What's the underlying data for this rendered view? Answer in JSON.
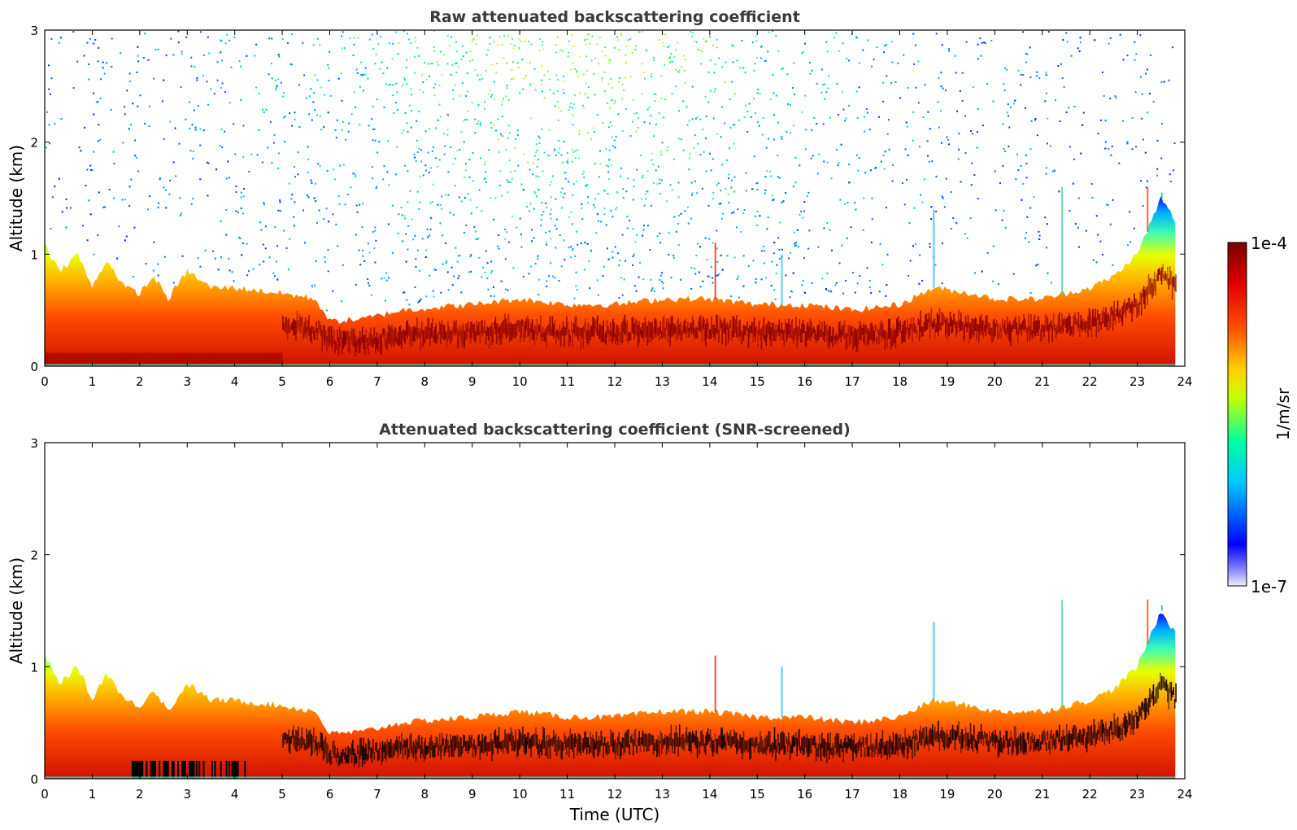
{
  "chart_data": [
    {
      "type": "heatmap",
      "title": "Raw attenuated backscattering coefficient",
      "xlabel": "",
      "ylabel": "Altitude (km)",
      "xlim": [
        0,
        24
      ],
      "ylim": [
        0,
        3
      ],
      "xticks": [
        "0",
        "1",
        "2",
        "3",
        "4",
        "5",
        "6",
        "7",
        "8",
        "9",
        "10",
        "11",
        "12",
        "13",
        "14",
        "15",
        "16",
        "17",
        "18",
        "19",
        "20",
        "21",
        "22",
        "23",
        "24"
      ],
      "yticks": [
        "0",
        "1",
        "2",
        "3"
      ],
      "screened": false,
      "boundary_layer_top_km": [
        [
          0,
          1.1
        ],
        [
          0.3,
          0.85
        ],
        [
          0.7,
          1.0
        ],
        [
          1.0,
          0.7
        ],
        [
          1.3,
          0.95
        ],
        [
          1.7,
          0.7
        ],
        [
          2.0,
          0.65
        ],
        [
          2.3,
          0.8
        ],
        [
          2.6,
          0.6
        ],
        [
          3.0,
          0.85
        ],
        [
          3.5,
          0.7
        ],
        [
          4.0,
          0.7
        ],
        [
          5.0,
          0.65
        ],
        [
          5.7,
          0.6
        ],
        [
          6.0,
          0.4
        ],
        [
          6.7,
          0.42
        ],
        [
          7.5,
          0.5
        ],
        [
          9.0,
          0.55
        ],
        [
          10.0,
          0.6
        ],
        [
          11.0,
          0.55
        ],
        [
          12.0,
          0.55
        ],
        [
          13.0,
          0.6
        ],
        [
          14.0,
          0.6
        ],
        [
          15.0,
          0.55
        ],
        [
          16.0,
          0.55
        ],
        [
          17.0,
          0.5
        ],
        [
          18.0,
          0.55
        ],
        [
          18.7,
          0.7
        ],
        [
          19.5,
          0.65
        ],
        [
          20.0,
          0.6
        ],
        [
          21.0,
          0.6
        ],
        [
          22.0,
          0.7
        ],
        [
          22.5,
          0.8
        ],
        [
          23.0,
          1.0
        ],
        [
          23.5,
          1.5
        ],
        [
          23.8,
          1.3
        ]
      ]
    },
    {
      "type": "heatmap",
      "title": "Attenuated backscattering coefficient (SNR-screened)",
      "xlabel": "Time (UTC)",
      "ylabel": "Altitude (km)",
      "xlim": [
        0,
        24
      ],
      "ylim": [
        0,
        3
      ],
      "xticks": [
        "0",
        "1",
        "2",
        "3",
        "4",
        "5",
        "6",
        "7",
        "8",
        "9",
        "10",
        "11",
        "12",
        "13",
        "14",
        "15",
        "16",
        "17",
        "18",
        "19",
        "20",
        "21",
        "22",
        "23",
        "24"
      ],
      "yticks": [
        "0",
        "1",
        "2",
        "3"
      ],
      "screened": true
    }
  ],
  "colorbar": {
    "label": "1/m/sr",
    "max_label": "1e-4",
    "min_label": "1e-7",
    "scale": "log",
    "colormap": "jet",
    "colors": [
      "#eeeeff",
      "#0000ff",
      "#00c8ff",
      "#00ffa0",
      "#c8ff00",
      "#ffd000",
      "#ff5000",
      "#e00000",
      "#7a0000"
    ]
  }
}
